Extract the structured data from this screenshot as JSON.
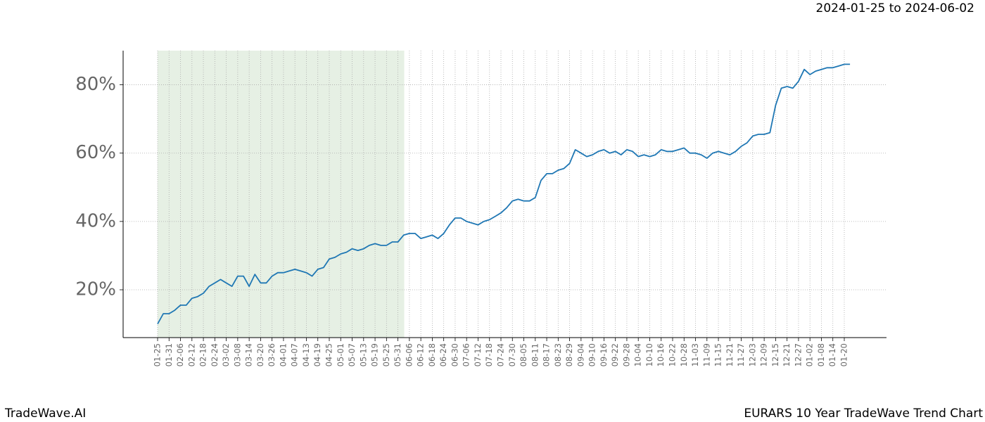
{
  "chart_data": {
    "type": "line",
    "subtitle": "2024-01-25 to 2024-06-02",
    "footer_left": "TradeWave.AI",
    "footer_right": "EURARS 10 Year TradeWave Trend Chart",
    "categories": [
      "01-25",
      null,
      "01-31",
      null,
      "02-06",
      null,
      "02-12",
      null,
      "02-18",
      null,
      "02-24",
      null,
      "03-02",
      null,
      "03-08",
      null,
      "03-14",
      null,
      "03-20",
      null,
      "03-26",
      null,
      "04-01",
      null,
      "04-07",
      null,
      "04-13",
      null,
      "04-19",
      null,
      "04-25",
      null,
      "05-01",
      null,
      "05-07",
      null,
      "05-13",
      null,
      "05-19",
      null,
      "05-25",
      null,
      "05-31",
      null,
      "06-06",
      null,
      "06-12",
      null,
      "06-18",
      null,
      "06-24",
      null,
      "06-30",
      null,
      "07-06",
      null,
      "07-12",
      null,
      "07-18",
      null,
      "07-24",
      null,
      "07-30",
      null,
      "08-05",
      null,
      "08-11",
      null,
      "08-17",
      null,
      "08-23",
      null,
      "08-29",
      null,
      "09-04",
      null,
      "09-10",
      null,
      "09-16",
      null,
      "09-22",
      null,
      "09-28",
      null,
      "10-04",
      null,
      "10-10",
      null,
      "10-16",
      null,
      "10-22",
      null,
      "10-28",
      null,
      "11-03",
      null,
      "11-09",
      null,
      "11-15",
      null,
      "11-21",
      null,
      "11-27",
      null,
      "12-03",
      null,
      "12-09",
      null,
      "12-15",
      null,
      "12-21",
      null,
      "12-27",
      null,
      "01-02",
      null,
      "01-08",
      null,
      "01-14",
      null,
      "01-20",
      null
    ],
    "series": [
      {
        "color": "#1f77b4",
        "values": [
          10,
          13,
          13,
          14,
          15.5,
          15.5,
          17.5,
          18,
          19,
          21,
          22,
          23,
          22,
          21,
          24,
          24,
          21,
          24.5,
          22,
          22,
          24,
          25,
          25,
          25.5,
          26,
          25.5,
          25,
          24,
          26,
          26.5,
          29,
          29.5,
          30.5,
          31,
          32,
          31.5,
          32,
          33,
          33.5,
          33,
          33,
          34,
          34,
          36,
          36.5,
          36.5,
          35,
          35.5,
          36,
          35,
          36.5,
          39,
          41,
          41,
          40,
          39.5,
          39,
          40,
          40.5,
          41.5,
          42.5,
          44,
          46,
          46.5,
          46,
          46,
          47,
          52,
          54,
          54,
          55,
          55.5,
          57,
          61,
          60,
          59,
          59.5,
          60.5,
          61,
          60,
          60.5,
          59.5,
          61,
          60.5,
          59,
          59.5,
          59,
          59.5,
          61,
          60.5,
          60.5,
          61,
          61.5,
          60,
          60,
          59.5,
          58.5,
          60,
          60.5,
          60,
          59.5,
          60.5,
          62,
          63,
          65,
          65.5,
          65.5,
          66,
          74,
          79,
          79.5,
          79,
          81,
          84.5,
          83,
          84,
          84.5,
          85,
          85,
          85.5,
          86,
          86
        ]
      }
    ],
    "highlight_range": [
      0,
      43.1
    ],
    "highlight_color": "#e6f0e4",
    "ylim": [
      6,
      90
    ],
    "yticks": [
      {
        "value": 20,
        "label": "20%"
      },
      {
        "value": 40,
        "label": "40%"
      },
      {
        "value": 60,
        "label": "60%"
      },
      {
        "value": 80,
        "label": "80%"
      }
    ],
    "grid": true
  }
}
